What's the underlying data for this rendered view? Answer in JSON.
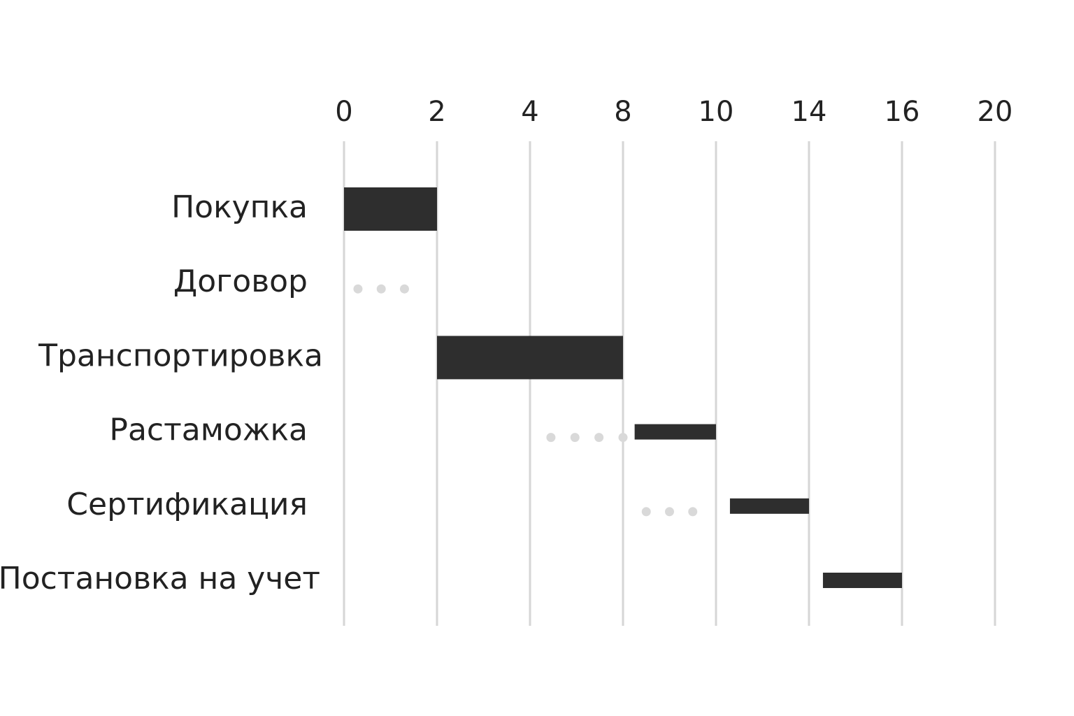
{
  "chart_data": {
    "type": "gantt",
    "categories": [
      "Покупка",
      "Договор",
      "Транспортировка",
      "Растаможка",
      "Сертификация",
      "Постановка на учет"
    ],
    "start": [
      0,
      null,
      2,
      8.25,
      10.6,
      14.3
    ],
    "end": [
      2,
      null,
      8,
      10,
      14,
      16
    ],
    "wait_start": [
      null,
      0.3,
      null,
      4.9,
      8.5,
      null
    ],
    "wait_end": [
      null,
      1.8,
      null,
      8,
      10,
      null
    ],
    "color": "#2e2e2e",
    "wait_color": "#d9d9d9",
    "xlim": [
      0,
      20
    ],
    "xticks": [
      0,
      2,
      4,
      8,
      10,
      14,
      16,
      20
    ],
    "grid": true
  }
}
